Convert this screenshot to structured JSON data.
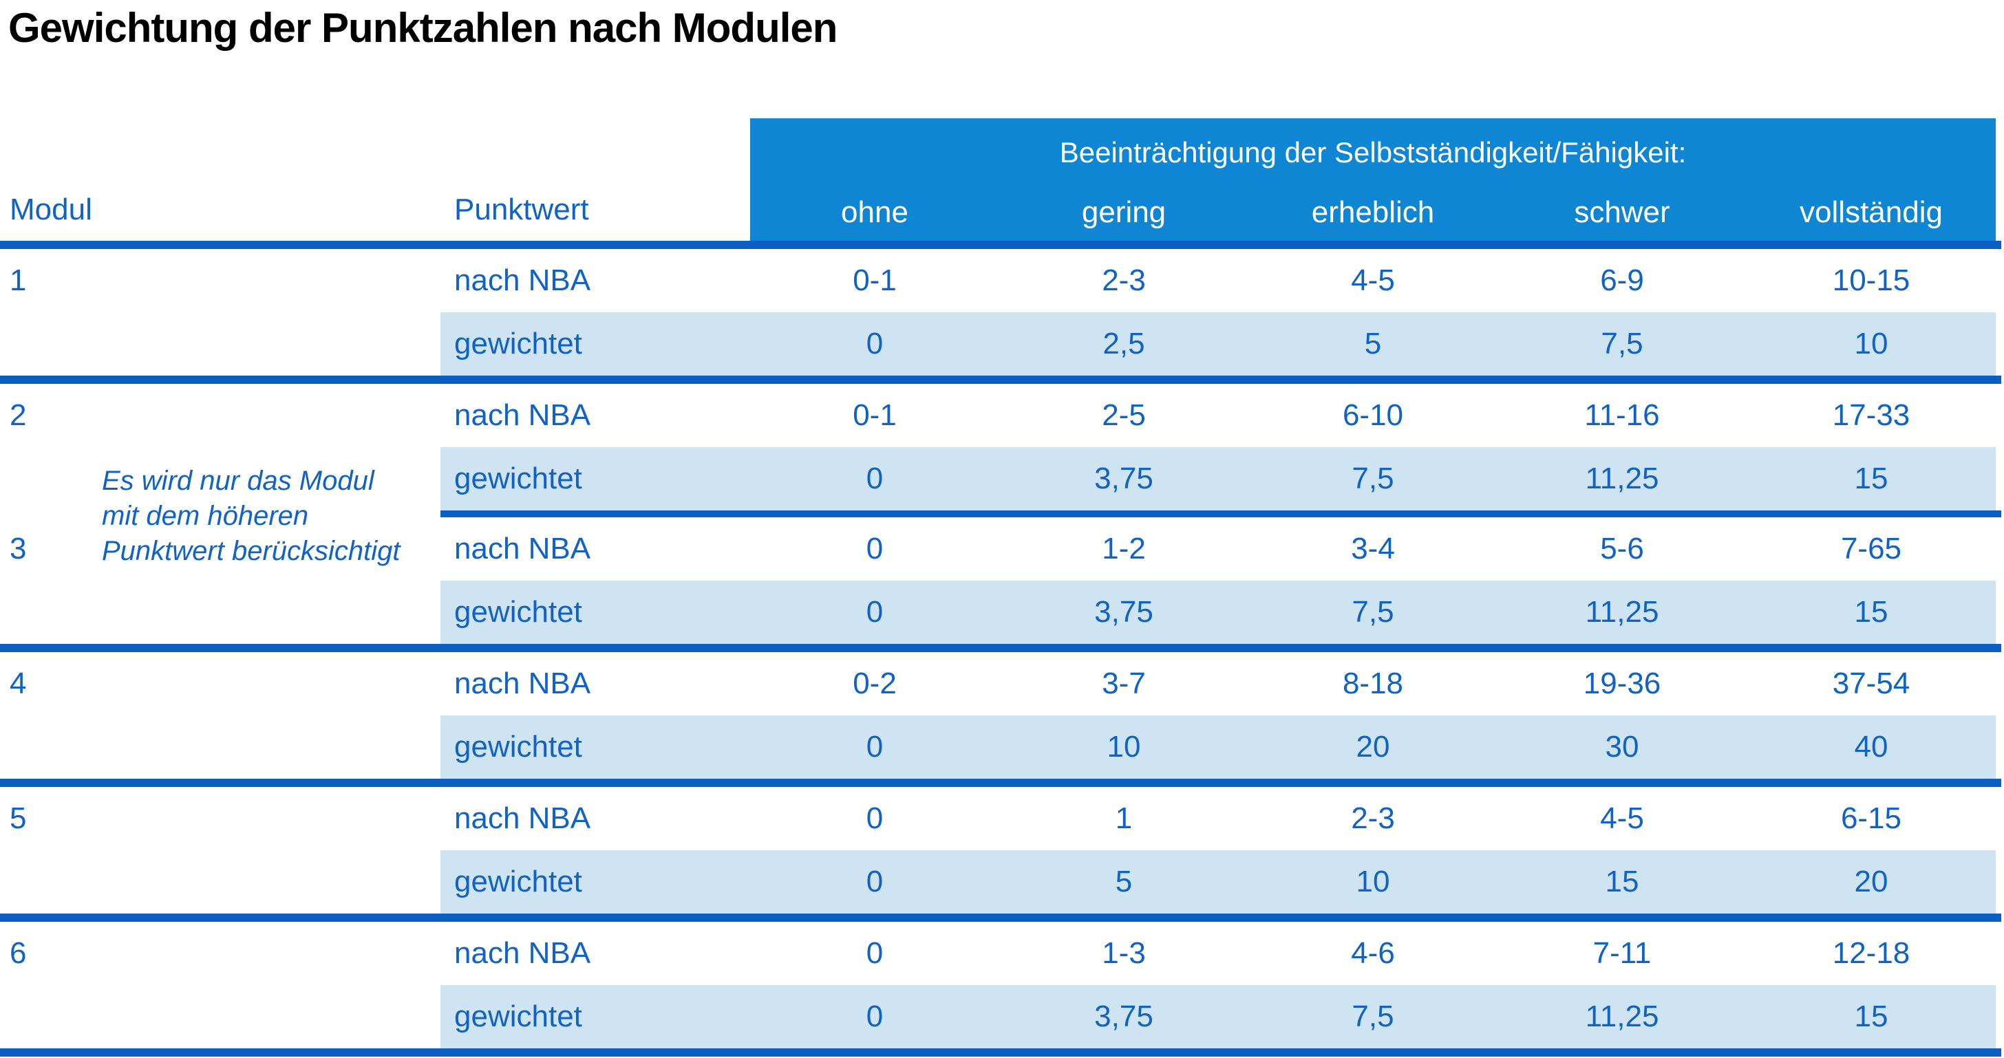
{
  "title": "Gewichtung der Punktzahlen nach Modulen",
  "table": {
    "col_headers": {
      "modul": "Modul",
      "punktwert": "Punktwert"
    },
    "group_header": "Beeinträchtigung der Selbstständigkeit/Fähigkeit:",
    "levels": [
      "ohne",
      "gering",
      "erheblich",
      "schwer",
      "vollständig"
    ],
    "row_labels": {
      "nba": "nach NBA",
      "weighted": "gewichtet"
    },
    "note": {
      "lines": [
        "Es wird nur das Modul",
        "mit dem höheren",
        "Punktwert berücksichtigt"
      ]
    },
    "modules": [
      {
        "number": "1",
        "nba": [
          "0-1",
          "2-3",
          "4-5",
          "6-9",
          "10-15"
        ],
        "weighted": [
          "0",
          "2,5",
          "5",
          "7,5",
          "10"
        ]
      },
      {
        "number": "2",
        "nba": [
          "0-1",
          "2-5",
          "6-10",
          "11-16",
          "17-33"
        ],
        "weighted": [
          "0",
          "3,75",
          "7,5",
          "11,25",
          "15"
        ]
      },
      {
        "number": "3",
        "nba": [
          "0",
          "1-2",
          "3-4",
          "5-6",
          "7-65"
        ],
        "weighted": [
          "0",
          "3,75",
          "7,5",
          "11,25",
          "15"
        ]
      },
      {
        "number": "4",
        "nba": [
          "0-2",
          "3-7",
          "8-18",
          "19-36",
          "37-54"
        ],
        "weighted": [
          "0",
          "10",
          "20",
          "30",
          "40"
        ]
      },
      {
        "number": "5",
        "nba": [
          "0",
          "1",
          "2-3",
          "4-5",
          "6-15"
        ],
        "weighted": [
          "0",
          "5",
          "10",
          "15",
          "20"
        ]
      },
      {
        "number": "6",
        "nba": [
          "0",
          "1-3",
          "4-6",
          "7-11",
          "12-18"
        ],
        "weighted": [
          "0",
          "3,75",
          "7,5",
          "11,25",
          "15"
        ]
      }
    ]
  },
  "colors": {
    "header_band": "#0e86d4",
    "row_highlight": "#cfe4f3",
    "rule": "#0b5fc2",
    "text_blue": "#1063c4",
    "band_text": "#ffffff",
    "title_text": "#000000"
  }
}
